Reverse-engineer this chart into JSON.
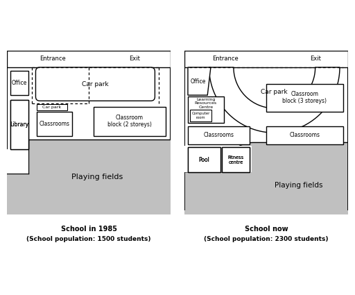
{
  "fig_width": 5.12,
  "fig_height": 4.25,
  "bg_color": "#ffffff",
  "fill_color": "#c0c0c0",
  "map1_title": "School in 1985",
  "map1_subtitle": "(School population: 1500 students)",
  "map2_title": "School now",
  "map2_subtitle": "(School population: 2300 students)"
}
